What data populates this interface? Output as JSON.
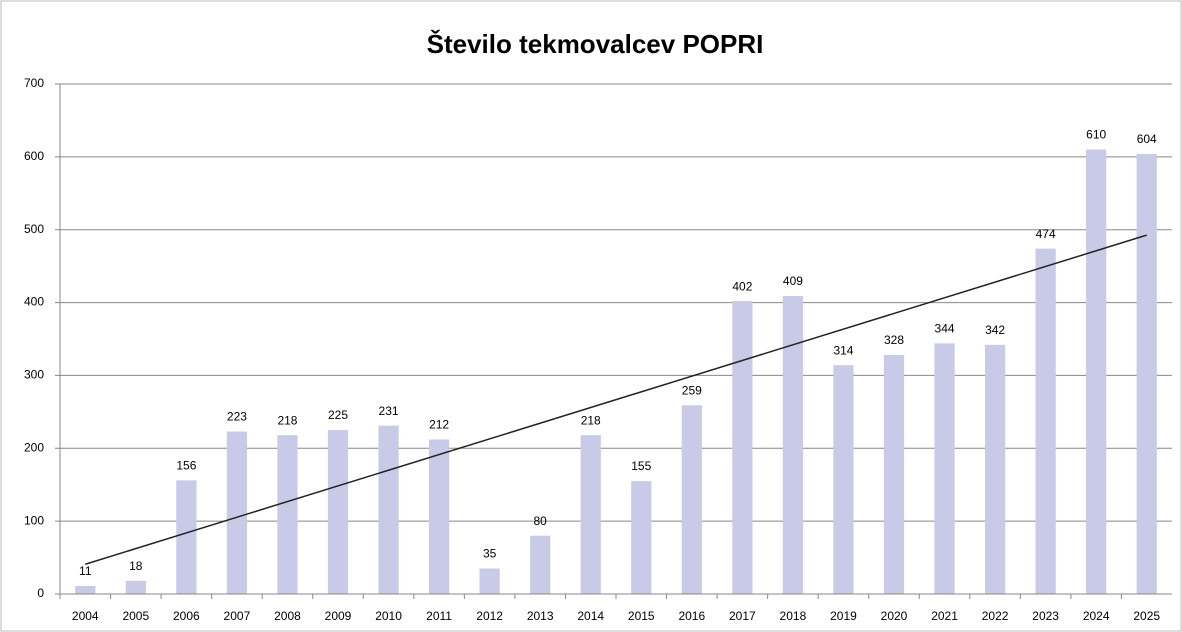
{
  "chart_data": {
    "type": "bar",
    "title": "Število tekmovalcev POPRI",
    "categories": [
      "2004",
      "2005",
      "2006",
      "2007",
      "2008",
      "2009",
      "2010",
      "2011",
      "2012",
      "2013",
      "2014",
      "2015",
      "2016",
      "2017",
      "2018",
      "2019",
      "2020",
      "2021",
      "2022",
      "2023",
      "2024",
      "2025"
    ],
    "values": [
      11,
      18,
      156,
      223,
      218,
      225,
      231,
      212,
      35,
      80,
      218,
      155,
      259,
      402,
      409,
      314,
      328,
      344,
      342,
      474,
      610,
      604
    ],
    "color": "#c8cae8",
    "ylim": [
      0,
      700
    ],
    "yticks": [
      0,
      100,
      200,
      300,
      400,
      500,
      600,
      700
    ],
    "grid": true,
    "trendline": "linear"
  }
}
